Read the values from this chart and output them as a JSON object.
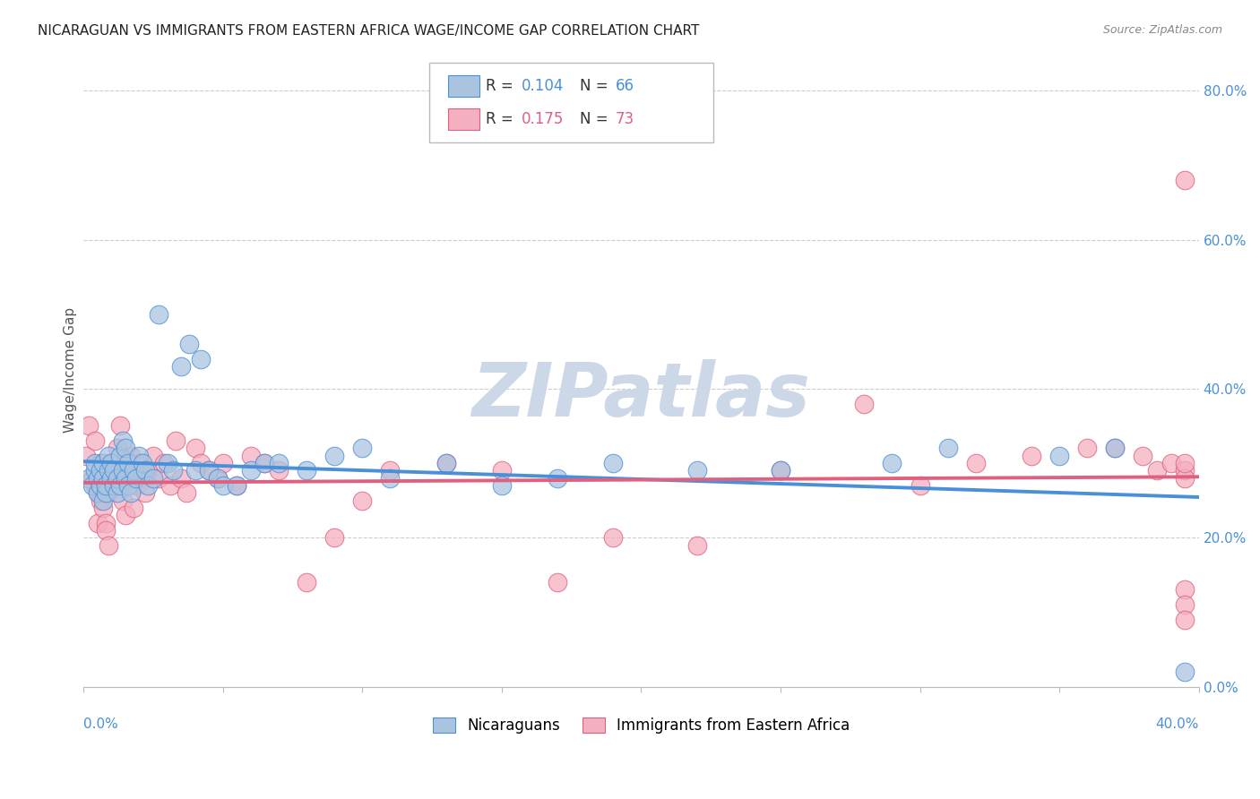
{
  "title": "NICARAGUAN VS IMMIGRANTS FROM EASTERN AFRICA WAGE/INCOME GAP CORRELATION CHART",
  "source": "Source: ZipAtlas.com",
  "ylabel": "Wage/Income Gap",
  "right_yticks": [
    0.0,
    0.2,
    0.4,
    0.6,
    0.8
  ],
  "right_yticklabels": [
    "0.0%",
    "20.0%",
    "40.0%",
    "60.0%",
    "80.0%"
  ],
  "blue_R": 0.104,
  "blue_N": 66,
  "pink_R": 0.175,
  "pink_N": 73,
  "blue_color": "#aac4e0",
  "pink_color": "#f4afc0",
  "blue_line_color": "#4a90d9",
  "pink_line_color": "#e06080",
  "legend_label_blue": "Nicaraguans",
  "legend_label_pink": "Immigrants from Eastern Africa",
  "watermark": "ZIPatlas",
  "blue_x": [
    0.002,
    0.003,
    0.004,
    0.004,
    0.005,
    0.005,
    0.006,
    0.006,
    0.007,
    0.007,
    0.007,
    0.008,
    0.008,
    0.009,
    0.009,
    0.01,
    0.01,
    0.011,
    0.011,
    0.012,
    0.012,
    0.013,
    0.013,
    0.014,
    0.014,
    0.015,
    0.015,
    0.016,
    0.016,
    0.017,
    0.018,
    0.019,
    0.02,
    0.021,
    0.022,
    0.023,
    0.025,
    0.027,
    0.03,
    0.032,
    0.035,
    0.038,
    0.04,
    0.042,
    0.045,
    0.048,
    0.05,
    0.055,
    0.06,
    0.065,
    0.07,
    0.08,
    0.09,
    0.1,
    0.11,
    0.13,
    0.15,
    0.17,
    0.19,
    0.22,
    0.25,
    0.29,
    0.31,
    0.35,
    0.37,
    0.395
  ],
  "blue_y": [
    0.28,
    0.27,
    0.29,
    0.3,
    0.26,
    0.28,
    0.27,
    0.29,
    0.25,
    0.28,
    0.3,
    0.26,
    0.27,
    0.29,
    0.31,
    0.28,
    0.3,
    0.27,
    0.29,
    0.26,
    0.28,
    0.31,
    0.27,
    0.33,
    0.29,
    0.28,
    0.32,
    0.3,
    0.27,
    0.26,
    0.29,
    0.28,
    0.31,
    0.3,
    0.29,
    0.27,
    0.28,
    0.5,
    0.3,
    0.29,
    0.43,
    0.46,
    0.29,
    0.44,
    0.29,
    0.28,
    0.27,
    0.27,
    0.29,
    0.3,
    0.3,
    0.29,
    0.31,
    0.32,
    0.28,
    0.3,
    0.27,
    0.28,
    0.3,
    0.29,
    0.29,
    0.3,
    0.32,
    0.31,
    0.32,
    0.02
  ],
  "pink_x": [
    0.001,
    0.002,
    0.003,
    0.004,
    0.004,
    0.005,
    0.005,
    0.006,
    0.006,
    0.007,
    0.007,
    0.008,
    0.008,
    0.009,
    0.009,
    0.01,
    0.01,
    0.011,
    0.012,
    0.013,
    0.014,
    0.014,
    0.015,
    0.016,
    0.017,
    0.018,
    0.019,
    0.02,
    0.021,
    0.022,
    0.023,
    0.025,
    0.027,
    0.029,
    0.031,
    0.033,
    0.035,
    0.037,
    0.04,
    0.042,
    0.045,
    0.048,
    0.05,
    0.055,
    0.06,
    0.065,
    0.07,
    0.08,
    0.09,
    0.1,
    0.11,
    0.13,
    0.15,
    0.17,
    0.19,
    0.22,
    0.25,
    0.28,
    0.3,
    0.32,
    0.34,
    0.36,
    0.37,
    0.38,
    0.385,
    0.39,
    0.395,
    0.395,
    0.395,
    0.395,
    0.395,
    0.395,
    0.395
  ],
  "pink_y": [
    0.31,
    0.35,
    0.28,
    0.27,
    0.33,
    0.26,
    0.22,
    0.25,
    0.3,
    0.24,
    0.28,
    0.22,
    0.21,
    0.19,
    0.26,
    0.28,
    0.3,
    0.27,
    0.32,
    0.35,
    0.25,
    0.29,
    0.23,
    0.28,
    0.31,
    0.24,
    0.27,
    0.3,
    0.28,
    0.26,
    0.29,
    0.31,
    0.28,
    0.3,
    0.27,
    0.33,
    0.28,
    0.26,
    0.32,
    0.3,
    0.29,
    0.28,
    0.3,
    0.27,
    0.31,
    0.3,
    0.29,
    0.14,
    0.2,
    0.25,
    0.29,
    0.3,
    0.29,
    0.14,
    0.2,
    0.19,
    0.29,
    0.38,
    0.27,
    0.3,
    0.31,
    0.32,
    0.32,
    0.31,
    0.29,
    0.3,
    0.29,
    0.28,
    0.3,
    0.68,
    0.13,
    0.11,
    0.09
  ],
  "xmin": 0.0,
  "xmax": 0.4,
  "ymin": 0.0,
  "ymax": 0.85,
  "grid_color": "#cccccc",
  "background_color": "#ffffff",
  "title_fontsize": 11,
  "source_fontsize": 9,
  "watermark_color": "#ccd8e8",
  "watermark_fontsize": 60
}
